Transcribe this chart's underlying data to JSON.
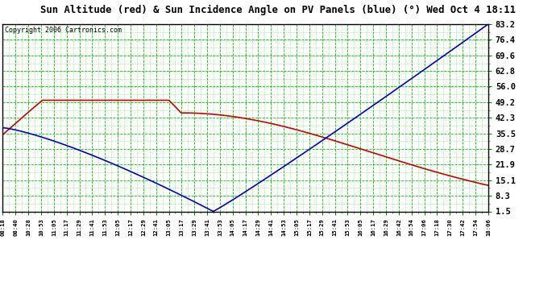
{
  "title": "Sun Altitude (red) & Sun Incidence Angle on PV Panels (blue) (°) Wed Oct 4 18:11",
  "copyright": "Copyright 2006 Cartronics.com",
  "y_ticks": [
    1.5,
    8.3,
    15.1,
    21.9,
    28.7,
    35.5,
    42.3,
    49.2,
    56.0,
    62.8,
    69.6,
    76.4,
    83.2
  ],
  "y_min": 1.5,
  "y_max": 83.2,
  "x_labels": [
    "08:18",
    "08:40",
    "10:28",
    "10:53",
    "11:05",
    "11:17",
    "11:29",
    "11:41",
    "11:53",
    "12:05",
    "12:17",
    "12:29",
    "12:41",
    "13:05",
    "13:17",
    "13:29",
    "13:41",
    "13:53",
    "14:05",
    "14:17",
    "14:29",
    "14:41",
    "14:53",
    "15:05",
    "15:17",
    "15:29",
    "15:41",
    "15:53",
    "16:05",
    "16:17",
    "16:29",
    "16:42",
    "16:54",
    "17:06",
    "17:18",
    "17:30",
    "17:42",
    "17:54",
    "18:06"
  ],
  "background_color": "#ffffff",
  "plot_bg_color": "#ffffff",
  "grid_color": "#00cc00",
  "red_line_color": "#cc0000",
  "blue_line_color": "#0000cc",
  "title_color": "#000000",
  "figwidth": 6.9,
  "figheight": 3.75,
  "dpi": 100
}
